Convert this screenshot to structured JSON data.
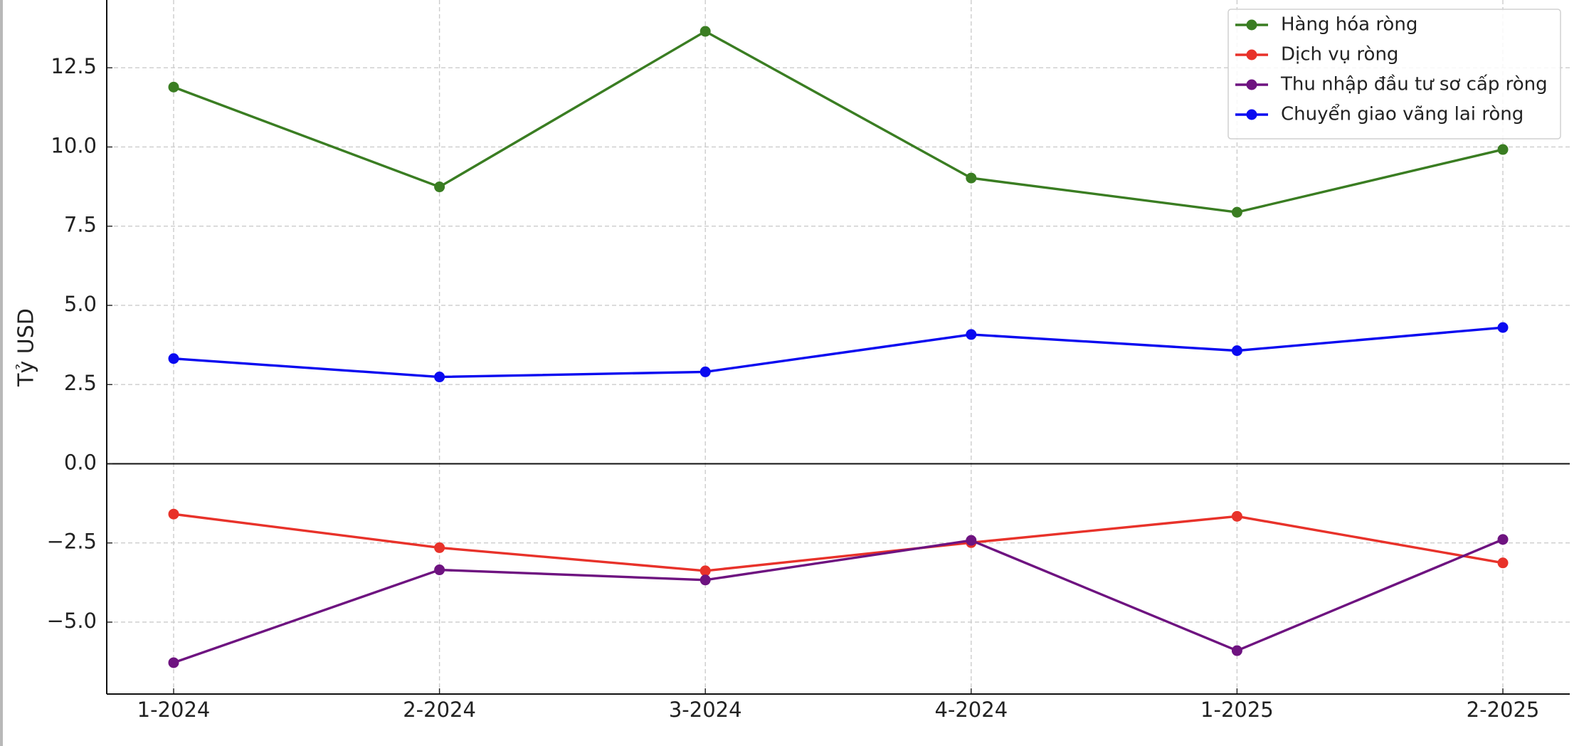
{
  "chart_data": {
    "type": "line",
    "ylabel": "Tỷ USD",
    "categories": [
      "1-2024",
      "2-2024",
      "3-2024",
      "4-2024",
      "1-2025",
      "2-2025"
    ],
    "series": [
      {
        "name": "Hàng hóa ròng",
        "color": "#3a7d22",
        "values": [
          11.89,
          8.74,
          13.65,
          9.02,
          7.94,
          9.92
        ]
      },
      {
        "name": "Dịch vụ ròng",
        "color": "#e8322a",
        "values": [
          -1.59,
          -2.65,
          -3.38,
          -2.49,
          -1.66,
          -3.13
        ]
      },
      {
        "name": "Thu nhập đầu tư sơ cấp ròng",
        "color": "#6e1380",
        "values": [
          -6.28,
          -3.35,
          -3.67,
          -2.42,
          -5.9,
          -2.39
        ]
      },
      {
        "name": "Chuyển giao vãng lai ròng",
        "color": "#0a0af0",
        "values": [
          3.32,
          2.74,
          2.9,
          4.08,
          3.57,
          4.3
        ]
      }
    ],
    "ylim": [
      -7.27,
      14.64
    ],
    "yticks": [
      {
        "value": -5,
        "label": "−5.0"
      },
      {
        "value": -2.5,
        "label": "−2.5"
      },
      {
        "value": 0,
        "label": "0.0"
      },
      2.5,
      {
        "value": 5,
        "label": "5.0"
      },
      7.5,
      {
        "value": 10,
        "label": "10.0"
      },
      12.5
    ],
    "grid": true,
    "legend": "upper right"
  }
}
